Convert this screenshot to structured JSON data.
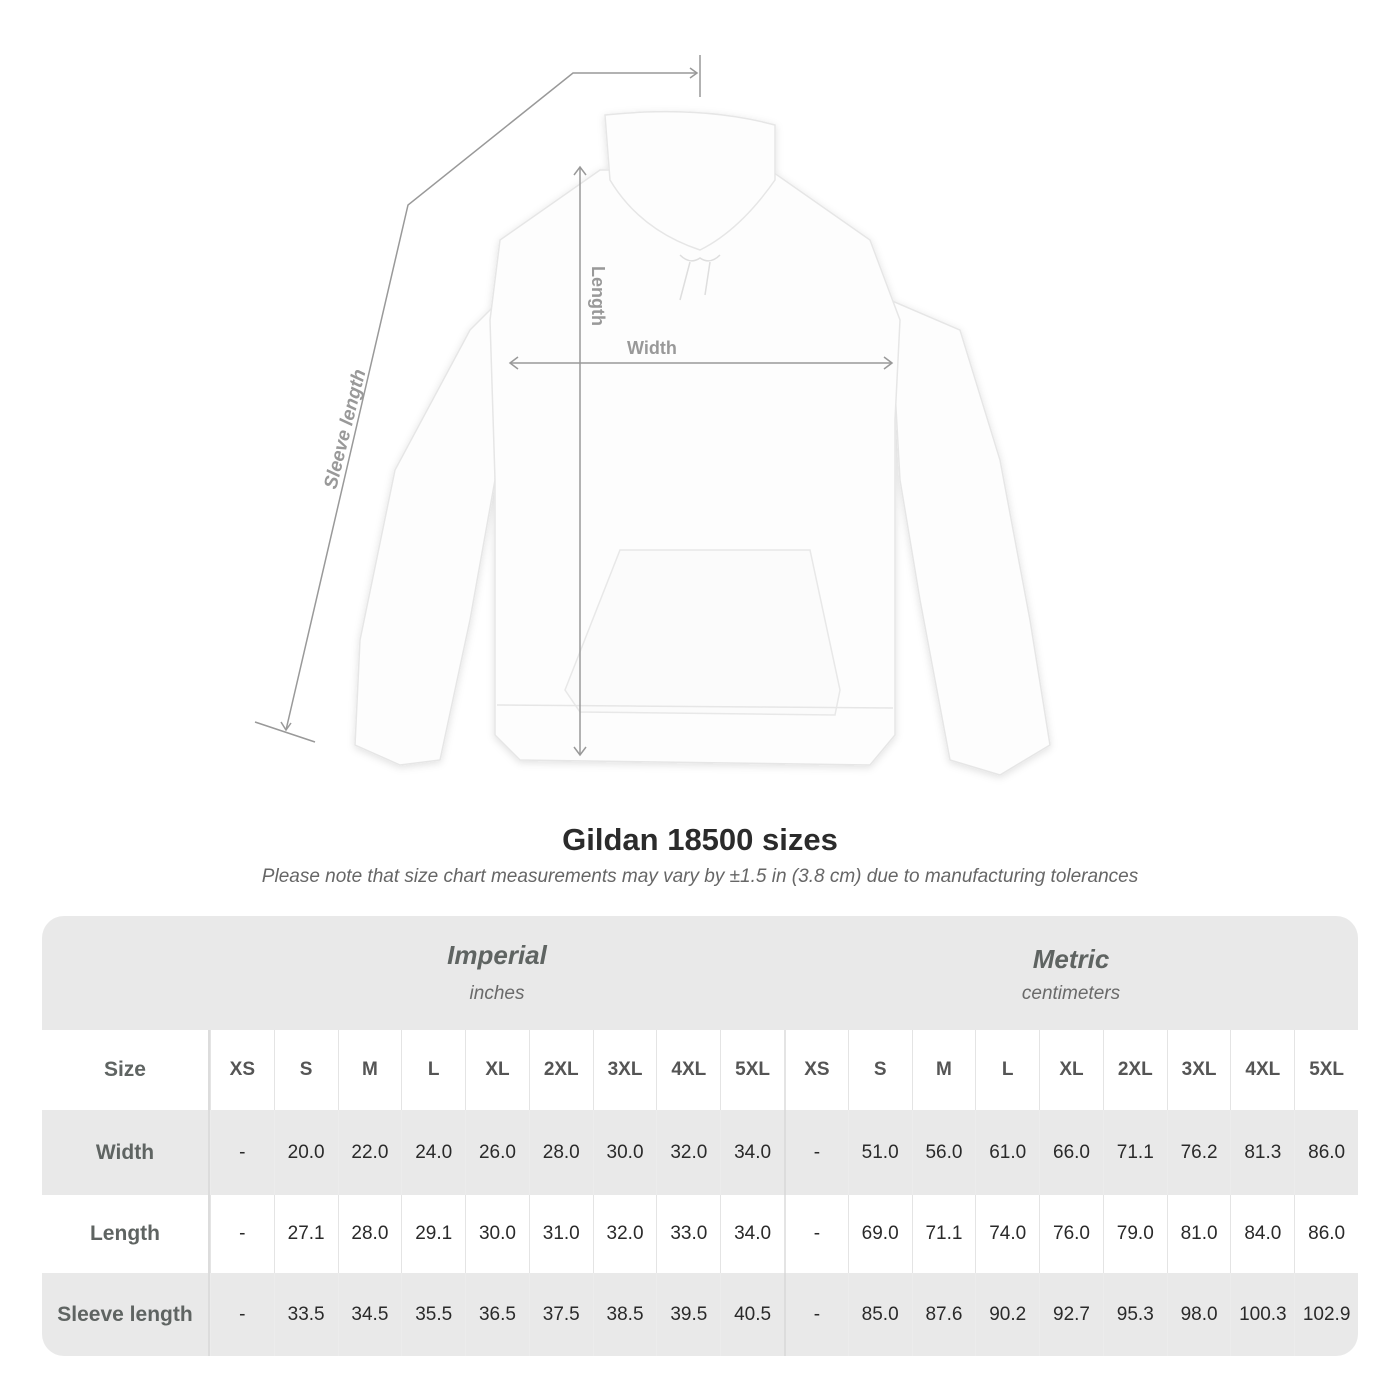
{
  "figure": {
    "labels": {
      "sleeve": "Sleeve length",
      "length": "Length",
      "width": "Width"
    },
    "garment_color": "#ffffff",
    "annotation_color": "#999999"
  },
  "title": "Gildan 18500 sizes",
  "note": "Please note that size chart measurements may vary by ±1.5 in (3.8 cm) due to manufacturing tolerances",
  "table": {
    "imperial": {
      "label": "Imperial",
      "unit": "inches"
    },
    "metric": {
      "label": "Metric",
      "unit": "centimeters"
    },
    "size_label": "Size",
    "sizes": [
      "XS",
      "S",
      "M",
      "L",
      "XL",
      "2XL",
      "3XL",
      "4XL",
      "5XL"
    ],
    "rows": [
      {
        "label": "Width",
        "imperial": [
          "-",
          "20.0",
          "22.0",
          "24.0",
          "26.0",
          "28.0",
          "30.0",
          "32.0",
          "34.0"
        ],
        "metric": [
          "-",
          "51.0",
          "56.0",
          "61.0",
          "66.0",
          "71.1",
          "76.2",
          "81.3",
          "86.0"
        ]
      },
      {
        "label": "Length",
        "imperial": [
          "-",
          "27.1",
          "28.0",
          "29.1",
          "30.0",
          "31.0",
          "32.0",
          "33.0",
          "34.0"
        ],
        "metric": [
          "-",
          "69.0",
          "71.1",
          "74.0",
          "76.0",
          "79.0",
          "81.0",
          "84.0",
          "86.0"
        ]
      },
      {
        "label": "Sleeve length",
        "imperial": [
          "-",
          "33.5",
          "34.5",
          "35.5",
          "36.5",
          "37.5",
          "38.5",
          "39.5",
          "40.5"
        ],
        "metric": [
          "-",
          "85.0",
          "87.6",
          "90.2",
          "92.7",
          "95.3",
          "98.0",
          "100.3",
          "102.9"
        ]
      }
    ]
  }
}
